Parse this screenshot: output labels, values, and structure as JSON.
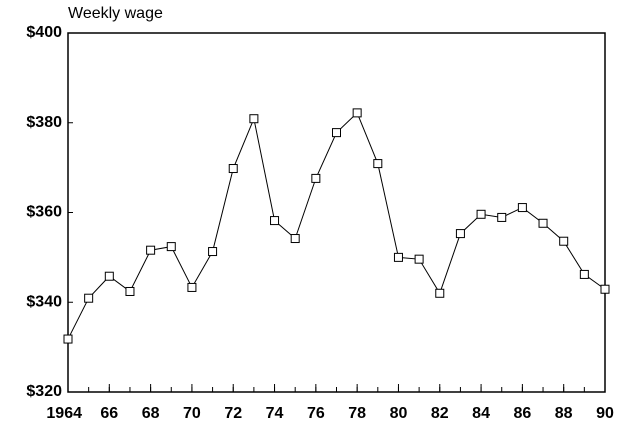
{
  "chart_data": {
    "type": "line",
    "title": "Weekly wage",
    "x": [
      1964,
      1965,
      1966,
      1967,
      1968,
      1969,
      1970,
      1971,
      1972,
      1973,
      1974,
      1975,
      1976,
      1977,
      1978,
      1979,
      1980,
      1981,
      1982,
      1983,
      1984,
      1985,
      1986,
      1987,
      1988,
      1989,
      1990
    ],
    "series": [
      {
        "name": "Weekly wage",
        "color": "#000000",
        "values": [
          331.8,
          340.9,
          345.8,
          342.4,
          351.6,
          352.4,
          343.3,
          351.3,
          369.8,
          380.9,
          358.2,
          354.2,
          367.6,
          377.8,
          382.2,
          370.9,
          350.0,
          349.6,
          342.0,
          355.3,
          359.6,
          358.9,
          361.1,
          357.6,
          353.6,
          346.2,
          342.9
        ]
      }
    ],
    "xlim": [
      1964,
      1990
    ],
    "xticks": [
      1964,
      {
        "value": 1966,
        "label": "66"
      },
      {
        "value": 1968,
        "label": "68"
      },
      {
        "value": 1970,
        "label": "70"
      },
      {
        "value": 1972,
        "label": "72"
      },
      {
        "value": 1974,
        "label": "74"
      },
      {
        "value": 1976,
        "label": "76"
      },
      {
        "value": 1978,
        "label": "78"
      },
      {
        "value": 1980,
        "label": "80"
      },
      {
        "value": 1982,
        "label": "82"
      },
      {
        "value": 1984,
        "label": "84"
      },
      {
        "value": 1986,
        "label": "86"
      },
      {
        "value": 1988,
        "label": "88"
      },
      {
        "value": 1990,
        "label": "90"
      }
    ],
    "ylim": [
      320,
      400
    ],
    "yticks": [
      {
        "value": 320,
        "label": "$320"
      },
      {
        "value": 340,
        "label": "$340"
      },
      {
        "value": 360,
        "label": "$360"
      },
      {
        "value": 380,
        "label": "$380"
      },
      {
        "value": 400,
        "label": "$400"
      }
    ],
    "grid": false
  }
}
